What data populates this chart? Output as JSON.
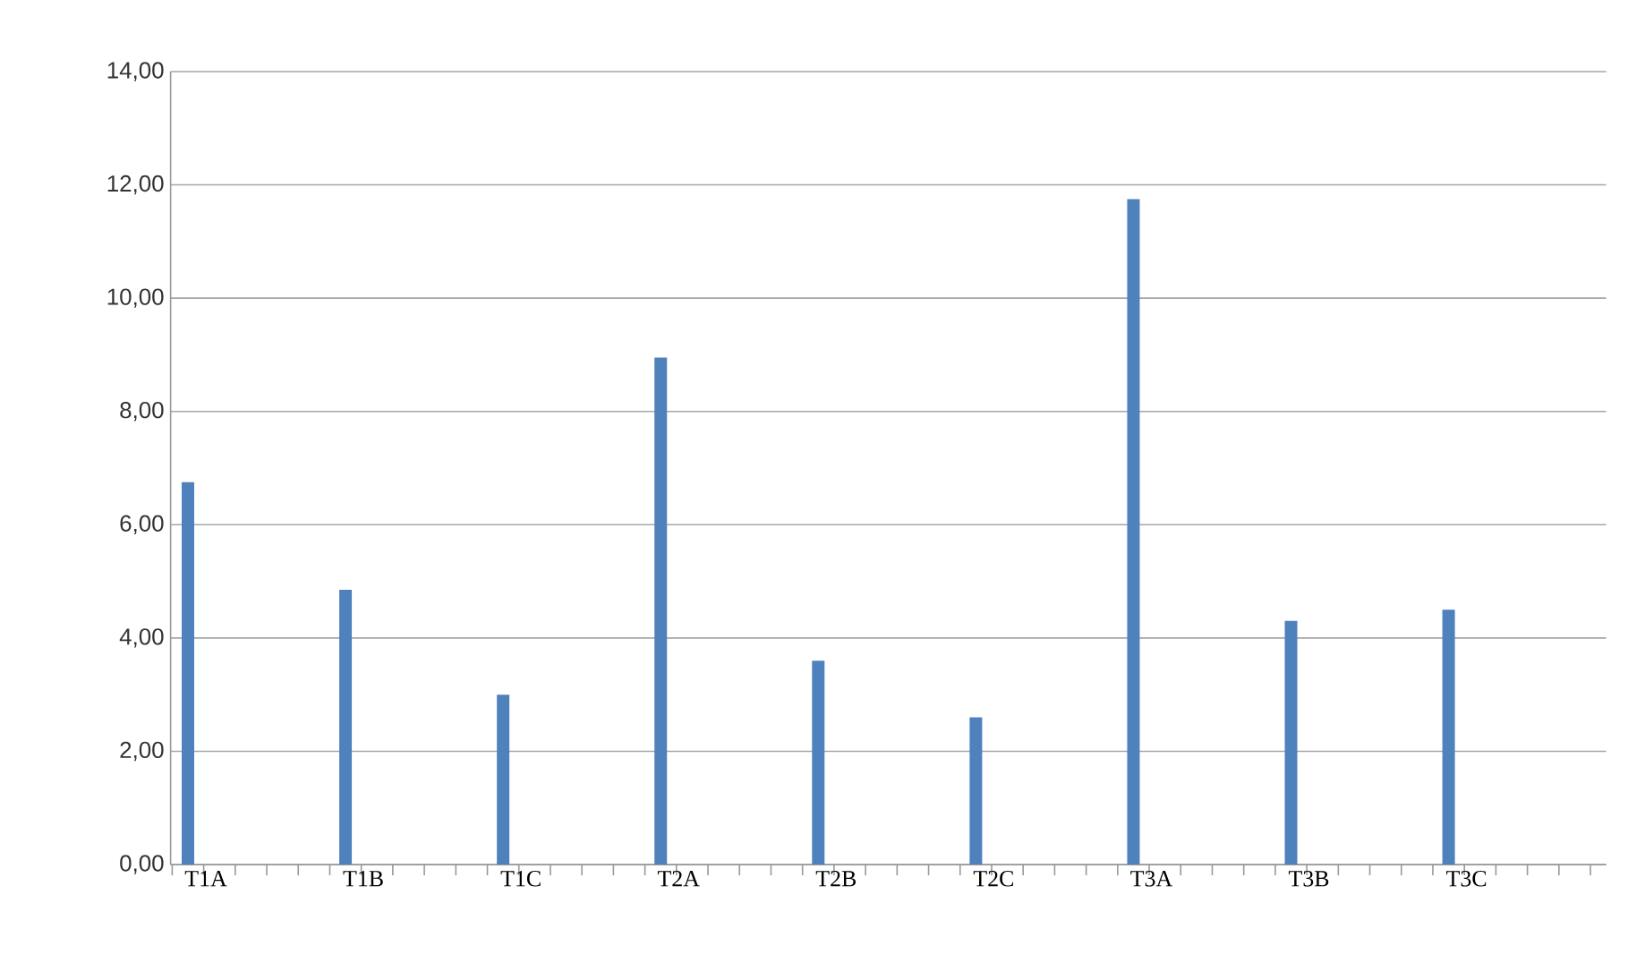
{
  "chart_data": {
    "type": "bar",
    "categories": [
      "T1A",
      "T1B",
      "T1C",
      "T2A",
      "T2B",
      "T2C",
      "T3A",
      "T3B",
      "T3C"
    ],
    "values": [
      6.75,
      4.85,
      3.0,
      8.95,
      3.6,
      2.6,
      11.75,
      4.3,
      4.5
    ],
    "color": "#4f81bd",
    "ylim": [
      0,
      14
    ],
    "yticks": [
      {
        "value": 0,
        "label": "0,00"
      },
      {
        "value": 2,
        "label": "2,00"
      },
      {
        "value": 4,
        "label": "4,00"
      },
      {
        "value": 6,
        "label": "6,00"
      },
      {
        "value": 8,
        "label": "8,00"
      },
      {
        "value": 10,
        "label": "10,00"
      },
      {
        "value": 12,
        "label": "12,00"
      },
      {
        "value": 14,
        "label": "14,00"
      }
    ],
    "grid": "y"
  }
}
